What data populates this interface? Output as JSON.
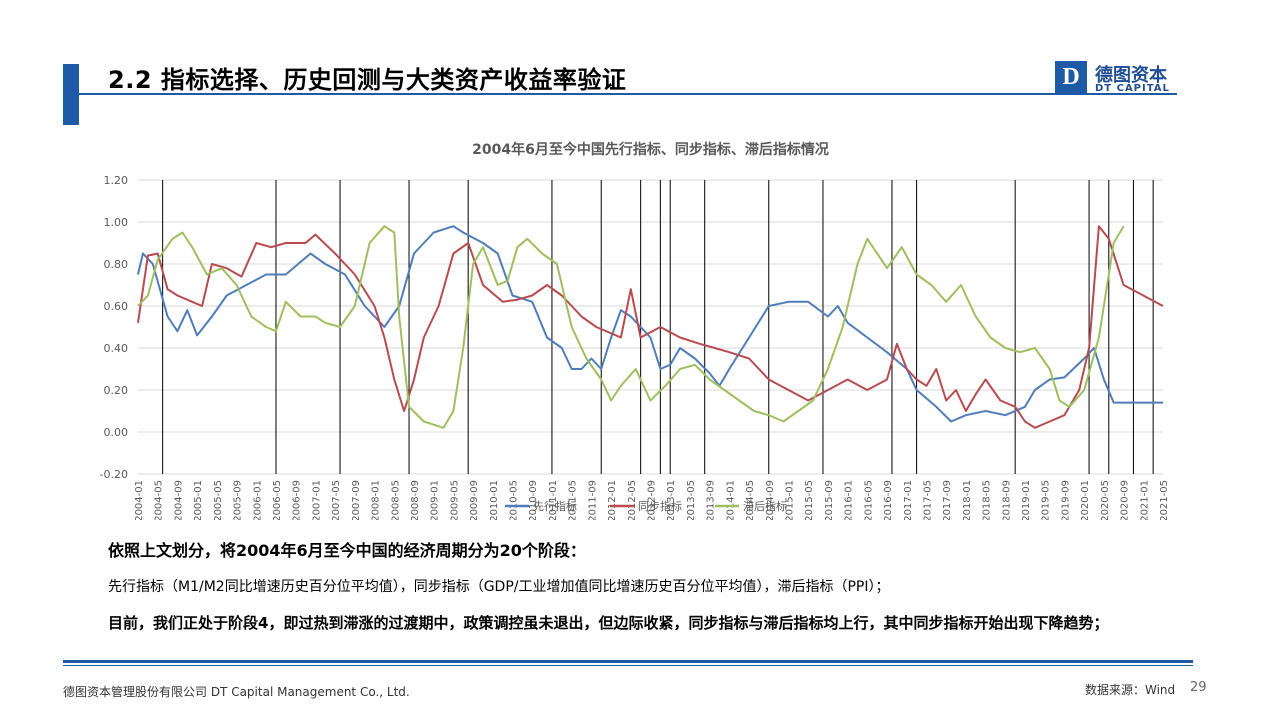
{
  "header": {
    "title": "2.2 指标选择、历史回测与大类资产收益率验证",
    "logo_mark": "D",
    "logo_cn": "德图资本",
    "logo_en": "DT CAPITAL"
  },
  "chart_data": {
    "type": "line",
    "title": "2004年6月至今中国先行指标、同步指标、滞后指标情况",
    "ylim": [
      -0.2,
      1.2
    ],
    "yticks": [
      "1.20",
      "1.00",
      "0.80",
      "0.60",
      "0.40",
      "0.20",
      "0.00",
      "-0.20"
    ],
    "x_start": "2004-01",
    "x_end": "2021-05",
    "xticks": [
      "2004-01",
      "2004-05",
      "2004-09",
      "2005-01",
      "2005-05",
      "2005-09",
      "2006-01",
      "2006-05",
      "2006-09",
      "2007-01",
      "2007-05",
      "2007-09",
      "2008-01",
      "2008-05",
      "2008-09",
      "2009-01",
      "2009-05",
      "2009-09",
      "2010-01",
      "2010-05",
      "2010-09",
      "2011-01",
      "2011-05",
      "2011-09",
      "2012-01",
      "2012-05",
      "2012-09",
      "2013-01",
      "2013-05",
      "2013-09",
      "2014-01",
      "2014-05",
      "2014-09",
      "2015-01",
      "2015-05",
      "2015-09",
      "2016-01",
      "2016-05",
      "2016-09",
      "2017-01",
      "2017-05",
      "2017-09",
      "2018-01",
      "2018-05",
      "2018-09",
      "2019-01",
      "2019-05",
      "2019-09",
      "2020-01",
      "2020-05",
      "2020-09",
      "2021-01",
      "2021-05"
    ],
    "phase_boundaries": [
      "2004-06",
      "2006-05",
      "2007-06",
      "2008-08",
      "2009-08",
      "2011-01",
      "2011-11",
      "2012-07",
      "2012-11",
      "2013-01",
      "2013-08",
      "2014-09",
      "2015-08",
      "2016-10",
      "2017-03",
      "2018-11",
      "2020-02",
      "2020-06",
      "2020-11",
      "2021-03"
    ],
    "legend_position": "bottom",
    "series": [
      {
        "name": "先行指标",
        "color": "#4F7DB8",
        "values": [
          [
            0,
            0.75
          ],
          [
            1,
            0.85
          ],
          [
            3,
            0.8
          ],
          [
            6,
            0.55
          ],
          [
            8,
            0.48
          ],
          [
            10,
            0.58
          ],
          [
            12,
            0.46
          ],
          [
            15,
            0.55
          ],
          [
            18,
            0.65
          ],
          [
            22,
            0.7
          ],
          [
            26,
            0.75
          ],
          [
            30,
            0.75
          ],
          [
            35,
            0.85
          ],
          [
            38,
            0.8
          ],
          [
            42,
            0.75
          ],
          [
            46,
            0.6
          ],
          [
            50,
            0.5
          ],
          [
            53,
            0.6
          ],
          [
            56,
            0.85
          ],
          [
            60,
            0.95
          ],
          [
            64,
            0.98
          ],
          [
            66,
            0.95
          ],
          [
            70,
            0.9
          ],
          [
            73,
            0.85
          ],
          [
            76,
            0.65
          ],
          [
            80,
            0.62
          ],
          [
            83,
            0.45
          ],
          [
            86,
            0.4
          ],
          [
            88,
            0.3
          ],
          [
            90,
            0.3
          ],
          [
            92,
            0.35
          ],
          [
            94,
            0.3
          ],
          [
            96,
            0.45
          ],
          [
            98,
            0.58
          ],
          [
            100,
            0.55
          ],
          [
            104,
            0.45
          ],
          [
            106,
            0.3
          ],
          [
            108,
            0.32
          ],
          [
            110,
            0.4
          ],
          [
            113,
            0.35
          ],
          [
            116,
            0.28
          ],
          [
            118,
            0.22
          ],
          [
            120,
            0.3
          ],
          [
            124,
            0.45
          ],
          [
            128,
            0.6
          ],
          [
            132,
            0.62
          ],
          [
            136,
            0.62
          ],
          [
            140,
            0.55
          ],
          [
            142,
            0.6
          ],
          [
            144,
            0.52
          ],
          [
            148,
            0.45
          ],
          [
            152,
            0.38
          ],
          [
            156,
            0.3
          ],
          [
            158,
            0.2
          ],
          [
            162,
            0.12
          ],
          [
            165,
            0.05
          ],
          [
            168,
            0.08
          ],
          [
            172,
            0.1
          ],
          [
            176,
            0.08
          ],
          [
            180,
            0.12
          ],
          [
            182,
            0.2
          ],
          [
            185,
            0.25
          ],
          [
            188,
            0.26
          ],
          [
            192,
            0.35
          ],
          [
            194,
            0.4
          ],
          [
            196,
            0.25
          ],
          [
            198,
            0.14
          ],
          [
            208,
            0.14
          ]
        ]
      },
      {
        "name": "同步指标",
        "color": "#B84B4F",
        "values": [
          [
            0,
            0.52
          ],
          [
            2,
            0.84
          ],
          [
            4,
            0.85
          ],
          [
            6,
            0.68
          ],
          [
            8,
            0.65
          ],
          [
            11,
            0.62
          ],
          [
            13,
            0.6
          ],
          [
            15,
            0.8
          ],
          [
            18,
            0.78
          ],
          [
            21,
            0.74
          ],
          [
            24,
            0.9
          ],
          [
            27,
            0.88
          ],
          [
            30,
            0.9
          ],
          [
            34,
            0.9
          ],
          [
            36,
            0.94
          ],
          [
            40,
            0.85
          ],
          [
            44,
            0.75
          ],
          [
            48,
            0.6
          ],
          [
            50,
            0.45
          ],
          [
            52,
            0.25
          ],
          [
            54,
            0.1
          ],
          [
            56,
            0.25
          ],
          [
            58,
            0.45
          ],
          [
            61,
            0.6
          ],
          [
            64,
            0.85
          ],
          [
            67,
            0.9
          ],
          [
            70,
            0.7
          ],
          [
            74,
            0.62
          ],
          [
            77,
            0.63
          ],
          [
            80,
            0.65
          ],
          [
            83,
            0.7
          ],
          [
            86,
            0.65
          ],
          [
            88,
            0.6
          ],
          [
            90,
            0.55
          ],
          [
            93,
            0.5
          ],
          [
            95,
            0.48
          ],
          [
            98,
            0.45
          ],
          [
            100,
            0.68
          ],
          [
            102,
            0.45
          ],
          [
            106,
            0.5
          ],
          [
            110,
            0.45
          ],
          [
            114,
            0.42
          ],
          [
            117,
            0.4
          ],
          [
            120,
            0.38
          ],
          [
            124,
            0.35
          ],
          [
            128,
            0.25
          ],
          [
            132,
            0.2
          ],
          [
            136,
            0.15
          ],
          [
            140,
            0.2
          ],
          [
            144,
            0.25
          ],
          [
            148,
            0.2
          ],
          [
            152,
            0.25
          ],
          [
            154,
            0.42
          ],
          [
            156,
            0.3
          ],
          [
            158,
            0.25
          ],
          [
            160,
            0.22
          ],
          [
            162,
            0.3
          ],
          [
            164,
            0.15
          ],
          [
            166,
            0.2
          ],
          [
            168,
            0.1
          ],
          [
            170,
            0.18
          ],
          [
            172,
            0.25
          ],
          [
            175,
            0.15
          ],
          [
            178,
            0.12
          ],
          [
            180,
            0.05
          ],
          [
            182,
            0.02
          ],
          [
            185,
            0.05
          ],
          [
            188,
            0.08
          ],
          [
            191,
            0.2
          ],
          [
            193,
            0.4
          ],
          [
            195,
            0.98
          ],
          [
            197,
            0.92
          ],
          [
            200,
            0.7
          ],
          [
            208,
            0.6
          ]
        ]
      },
      {
        "name": "滞后指标",
        "color": "#9FBF5F",
        "values": [
          [
            0,
            0.6
          ],
          [
            2,
            0.65
          ],
          [
            4,
            0.82
          ],
          [
            7,
            0.92
          ],
          [
            9,
            0.95
          ],
          [
            11,
            0.88
          ],
          [
            14,
            0.75
          ],
          [
            17,
            0.78
          ],
          [
            20,
            0.7
          ],
          [
            23,
            0.55
          ],
          [
            26,
            0.5
          ],
          [
            28,
            0.48
          ],
          [
            30,
            0.62
          ],
          [
            33,
            0.55
          ],
          [
            36,
            0.55
          ],
          [
            38,
            0.52
          ],
          [
            41,
            0.5
          ],
          [
            44,
            0.6
          ],
          [
            47,
            0.9
          ],
          [
            50,
            0.98
          ],
          [
            52,
            0.95
          ],
          [
            53,
            0.55
          ],
          [
            55,
            0.12
          ],
          [
            58,
            0.05
          ],
          [
            62,
            0.02
          ],
          [
            64,
            0.1
          ],
          [
            66,
            0.4
          ],
          [
            68,
            0.8
          ],
          [
            70,
            0.88
          ],
          [
            73,
            0.7
          ],
          [
            75,
            0.72
          ],
          [
            77,
            0.88
          ],
          [
            79,
            0.92
          ],
          [
            82,
            0.85
          ],
          [
            85,
            0.8
          ],
          [
            88,
            0.5
          ],
          [
            91,
            0.35
          ],
          [
            94,
            0.25
          ],
          [
            96,
            0.15
          ],
          [
            98,
            0.22
          ],
          [
            101,
            0.3
          ],
          [
            104,
            0.15
          ],
          [
            107,
            0.22
          ],
          [
            110,
            0.3
          ],
          [
            113,
            0.32
          ],
          [
            116,
            0.25
          ],
          [
            119,
            0.2
          ],
          [
            122,
            0.15
          ],
          [
            125,
            0.1
          ],
          [
            128,
            0.08
          ],
          [
            131,
            0.05
          ],
          [
            134,
            0.1
          ],
          [
            137,
            0.15
          ],
          [
            140,
            0.3
          ],
          [
            143,
            0.5
          ],
          [
            146,
            0.8
          ],
          [
            148,
            0.92
          ],
          [
            150,
            0.85
          ],
          [
            152,
            0.78
          ],
          [
            155,
            0.88
          ],
          [
            158,
            0.75
          ],
          [
            161,
            0.7
          ],
          [
            164,
            0.62
          ],
          [
            167,
            0.7
          ],
          [
            170,
            0.55
          ],
          [
            173,
            0.45
          ],
          [
            176,
            0.4
          ],
          [
            179,
            0.38
          ],
          [
            182,
            0.4
          ],
          [
            185,
            0.3
          ],
          [
            187,
            0.15
          ],
          [
            189,
            0.12
          ],
          [
            192,
            0.2
          ],
          [
            195,
            0.45
          ],
          [
            198,
            0.9
          ],
          [
            200,
            0.98
          ]
        ]
      }
    ]
  },
  "text": {
    "heading": "依照上文划分，将2004年6月至今中国的经济周期分为20个阶段：",
    "definitions": "先行指标（M1/M2同比增速历史百分位平均值），同步指标（GDP/工业增加值同比增速历史百分位平均值），滞后指标（PPI）；",
    "current": "目前，我们正处于阶段4，即过热到滞涨的过渡期中，政策调控虽未退出，但边际收紧，同步指标与滞后指标均上行，其中同步指标开始出现下降趋势；"
  },
  "footer": {
    "company": "德图资本管理股份有限公司  DT Capital Management  Co., Ltd.",
    "source": "数据来源：Wind",
    "page": "29"
  }
}
